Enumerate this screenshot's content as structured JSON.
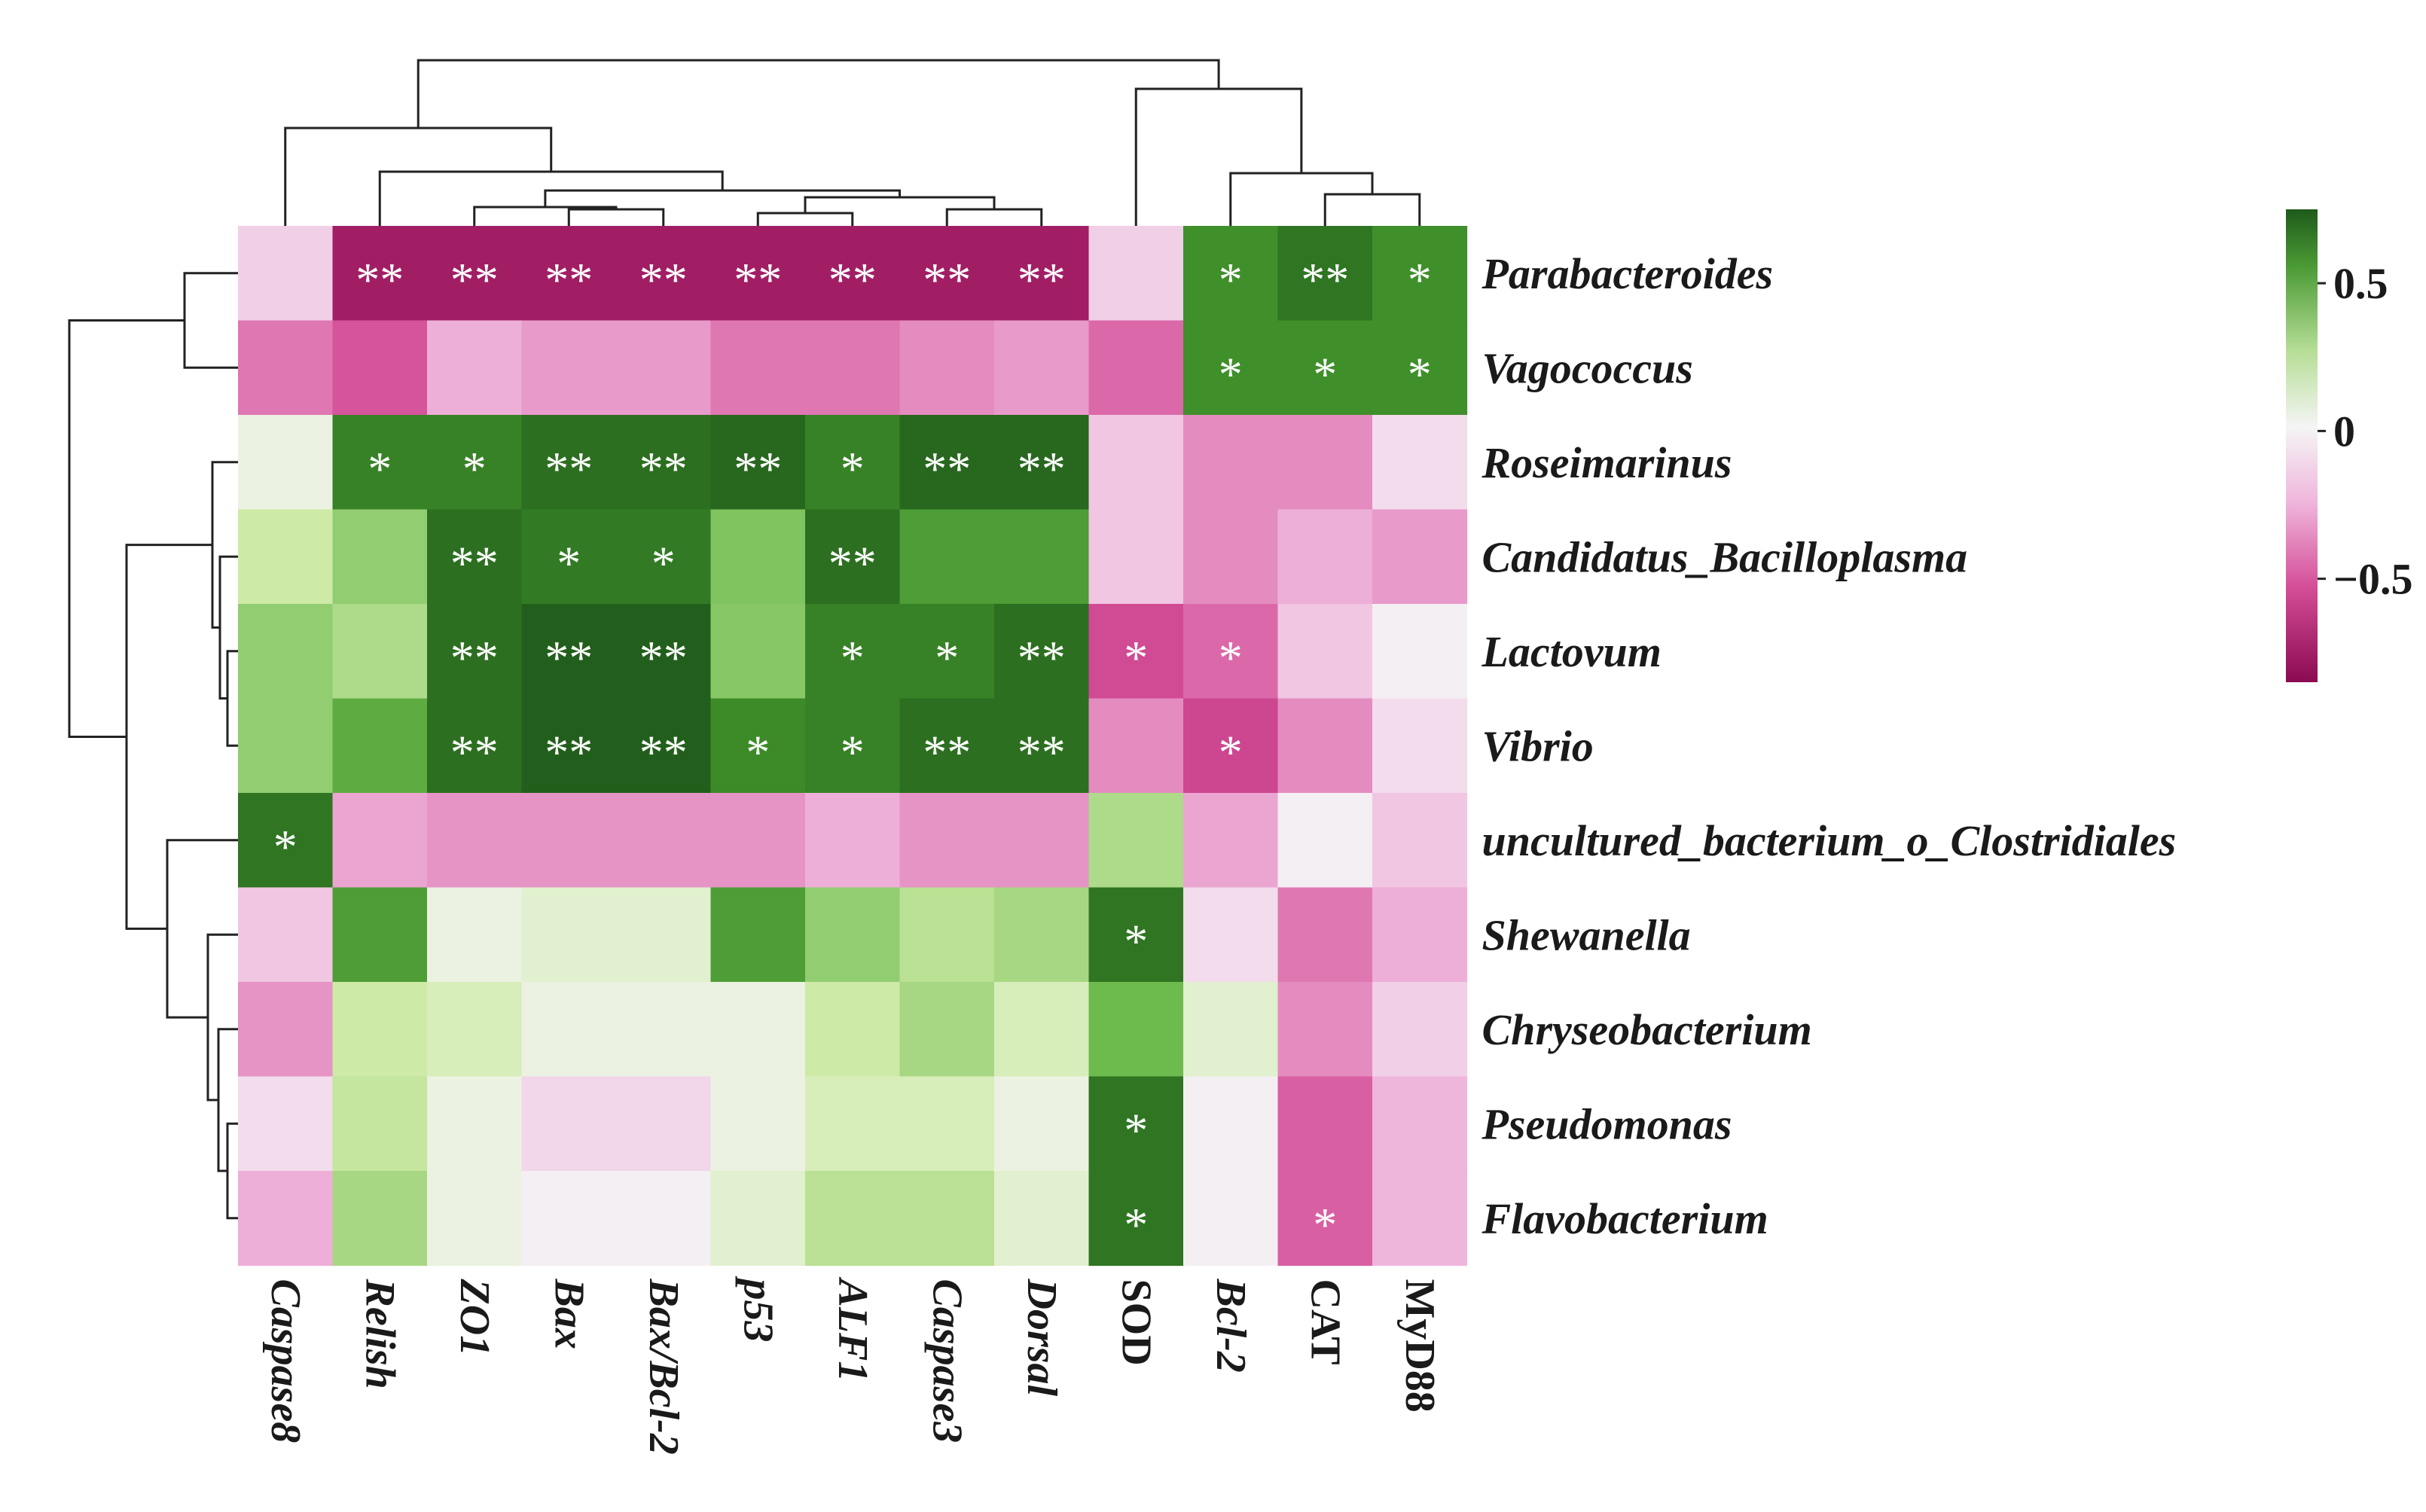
{
  "chart_data": {
    "type": "heatmap",
    "title": "",
    "columns": [
      "Caspase8",
      "Relish",
      "ZO1",
      "Bax",
      "Bax/Bcl-2",
      "p53",
      "ALF1",
      "Caspase3",
      "Dorsal",
      "SOD",
      "Bcl-2",
      "CAT",
      "MyD88"
    ],
    "upright_columns": [
      "SOD",
      "CAT",
      "MyD88"
    ],
    "rows": [
      "Parabacteroides",
      "Vagococcus",
      "Roseimarinus",
      "Candidatus_Bacilloplasma",
      "Lactovum",
      "Vibrio",
      "uncultured_bacterium_o_Clostridiales",
      "Shewanella",
      "Chryseobacterium",
      "Pseudomonas",
      "Flavobacterium"
    ],
    "values": [
      [
        -0.12,
        -0.85,
        -0.85,
        -0.85,
        -0.85,
        -0.85,
        -0.85,
        -0.85,
        -0.85,
        -0.12,
        0.6,
        0.7,
        0.6
      ],
      [
        -0.38,
        -0.48,
        -0.22,
        -0.28,
        -0.28,
        -0.38,
        -0.38,
        -0.32,
        -0.28,
        -0.42,
        0.6,
        0.6,
        0.6
      ],
      [
        0.05,
        0.65,
        0.65,
        0.72,
        0.72,
        0.75,
        0.65,
        0.75,
        0.75,
        -0.15,
        -0.32,
        -0.32,
        -0.08
      ],
      [
        0.2,
        0.35,
        0.72,
        0.68,
        0.68,
        0.4,
        0.72,
        0.55,
        0.55,
        -0.15,
        -0.32,
        -0.22,
        -0.28
      ],
      [
        0.35,
        0.28,
        0.72,
        0.78,
        0.78,
        0.38,
        0.65,
        0.65,
        0.72,
        -0.52,
        -0.42,
        -0.15,
        -0.02
      ],
      [
        0.35,
        0.5,
        0.72,
        0.78,
        0.78,
        0.62,
        0.65,
        0.72,
        0.72,
        -0.32,
        -0.55,
        -0.32,
        -0.08
      ],
      [
        0.7,
        -0.25,
        -0.3,
        -0.3,
        -0.3,
        -0.3,
        -0.22,
        -0.3,
        -0.3,
        0.28,
        -0.25,
        -0.02,
        -0.15
      ],
      [
        -0.15,
        0.55,
        0.05,
        0.1,
        0.1,
        0.55,
        0.35,
        0.25,
        0.3,
        0.7,
        -0.08,
        -0.38,
        -0.22
      ],
      [
        -0.3,
        0.2,
        0.15,
        0.05,
        0.05,
        0.05,
        0.2,
        0.3,
        0.15,
        0.45,
        0.1,
        -0.32,
        -0.12
      ],
      [
        -0.08,
        0.22,
        0.05,
        -0.1,
        -0.1,
        0.05,
        0.15,
        0.15,
        0.05,
        0.7,
        -0.02,
        -0.45,
        -0.2
      ],
      [
        -0.22,
        0.3,
        0.05,
        -0.02,
        -0.02,
        0.1,
        0.25,
        0.25,
        0.1,
        0.7,
        -0.02,
        -0.45,
        -0.2
      ]
    ],
    "significance": [
      [
        "",
        "**",
        "**",
        "**",
        "**",
        "**",
        "**",
        "**",
        "**",
        "",
        "*",
        "**",
        "*"
      ],
      [
        "",
        "",
        "",
        "",
        "",
        "",
        "",
        "",
        "",
        "",
        "*",
        "*",
        "*"
      ],
      [
        "",
        "*",
        "*",
        "**",
        "**",
        "**",
        "*",
        "**",
        "**",
        "",
        "",
        "",
        ""
      ],
      [
        "",
        "",
        "**",
        "*",
        "*",
        "",
        "**",
        "",
        "",
        "",
        "",
        "",
        ""
      ],
      [
        "",
        "",
        "**",
        "**",
        "**",
        "",
        "*",
        "*",
        "**",
        "*",
        "*",
        "",
        ""
      ],
      [
        "",
        "",
        "**",
        "**",
        "**",
        "*",
        "*",
        "**",
        "**",
        "",
        "*",
        "",
        ""
      ],
      [
        "*",
        "",
        "",
        "",
        "",
        "",
        "",
        "",
        "",
        "",
        "",
        "",
        ""
      ],
      [
        "",
        "",
        "",
        "",
        "",
        "",
        "",
        "",
        "",
        "*",
        "",
        "",
        ""
      ],
      [
        "",
        "",
        "",
        "",
        "",
        "",
        "",
        "",
        "",
        "",
        "",
        "",
        ""
      ],
      [
        "",
        "",
        "",
        "",
        "",
        "",
        "",
        "",
        "",
        "*",
        "",
        "",
        ""
      ],
      [
        "",
        "",
        "",
        "",
        "",
        "",
        "",
        "",
        "",
        "*",
        "",
        "*",
        ""
      ]
    ],
    "color_scale": {
      "min": -0.85,
      "max": 0.75,
      "low_color": "#8b0a50",
      "mid_color": "#f5f5f5",
      "high_color": "#1f5a1a",
      "ticks": [
        0.5,
        0,
        -0.5
      ],
      "tick_labels": [
        "0.5",
        "0",
        "−0.5"
      ]
    },
    "legend_position": "right"
  }
}
